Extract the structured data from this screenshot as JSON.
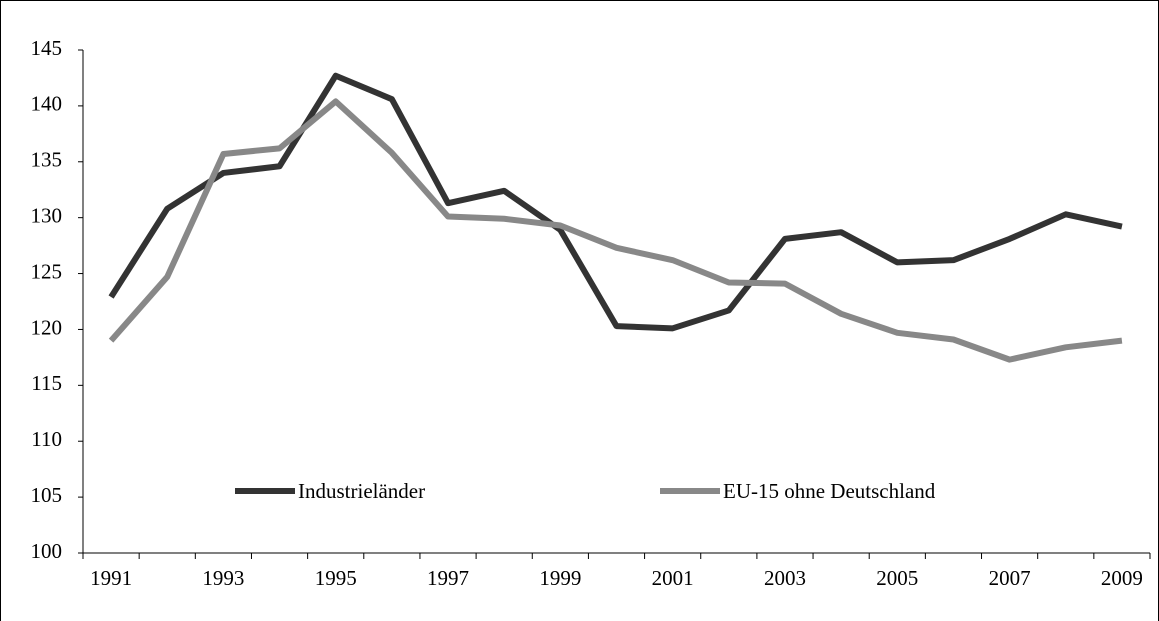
{
  "chart_data": {
    "type": "line",
    "categories": [
      "1991",
      null,
      "1993",
      null,
      "1995",
      null,
      "1997",
      null,
      "1999",
      null,
      "2001",
      null,
      "2003",
      null,
      "2005",
      null,
      "2007",
      null,
      "2009"
    ],
    "series": [
      {
        "name": "Industrieländer",
        "color": "#333333",
        "values": [
          122.9,
          130.8,
          134.0,
          134.6,
          142.7,
          140.6,
          131.3,
          132.4,
          128.9,
          120.3,
          120.1,
          121.7,
          128.1,
          128.7,
          126.0,
          126.2,
          128.1,
          130.3,
          129.2
        ]
      },
      {
        "name": "EU-15 ohne Deutschland",
        "color": "#888888",
        "values": [
          119.0,
          124.7,
          135.7,
          136.2,
          140.4,
          135.8,
          130.1,
          129.9,
          129.3,
          127.3,
          126.2,
          124.2,
          124.1,
          121.4,
          119.7,
          119.1,
          117.3,
          118.4,
          119.0
        ]
      }
    ],
    "ylim": [
      100,
      145
    ],
    "yticks": [
      100,
      105,
      110,
      115,
      120,
      125,
      130,
      135,
      140,
      145
    ],
    "grid": false,
    "legend": "bottom"
  }
}
